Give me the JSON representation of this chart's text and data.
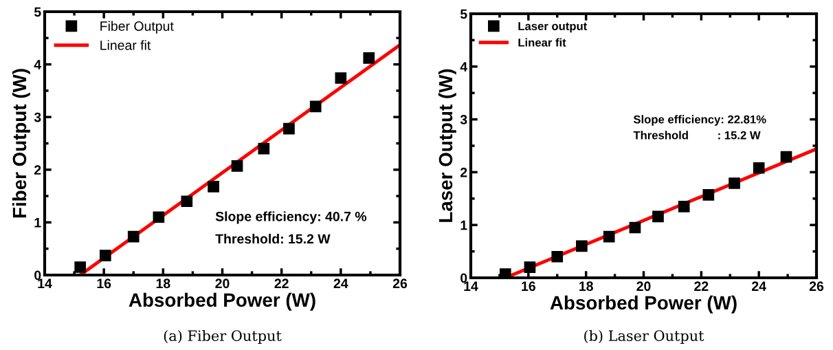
{
  "chart_data": [
    {
      "type": "scatter",
      "xlabel": "Absorbed Power (W)",
      "ylabel": "Fiber Output (W)",
      "xlim": [
        14,
        26
      ],
      "ylim": [
        0,
        5
      ],
      "xticks": [
        14,
        16,
        18,
        20,
        22,
        24,
        26
      ],
      "yticks": [
        0,
        1,
        2,
        3,
        4,
        5
      ],
      "legend": "top left",
      "grid": false,
      "series": [
        {
          "name": "Fiber Output",
          "marker": "square",
          "color": "#000000",
          "x": [
            15.2,
            16.05,
            17.0,
            17.85,
            18.8,
            19.7,
            20.5,
            21.4,
            22.25,
            23.15,
            24.0,
            24.95
          ],
          "values": [
            0.15,
            0.37,
            0.73,
            1.1,
            1.4,
            1.68,
            2.07,
            2.4,
            2.78,
            3.2,
            3.74,
            4.12
          ]
        },
        {
          "name": "Linear fit",
          "type": "line",
          "marker": "none",
          "color": "#ff0000",
          "x": [
            15.2,
            26
          ],
          "values": [
            0,
            4.37
          ]
        }
      ],
      "annotations": [
        "Slope efficiency: 40.7 %",
        "Threshold: 15.2 W",
        "(a) Fiber Output"
      ]
    },
    {
      "type": "scatter",
      "xlabel": "Absorbed Power (W)",
      "ylabel": "Laser Output (W)",
      "xlim": [
        14,
        26
      ],
      "ylim": [
        0,
        5
      ],
      "xticks": [
        14,
        16,
        18,
        20,
        22,
        24,
        26
      ],
      "yticks": [
        0,
        1,
        2,
        3,
        4,
        5
      ],
      "legend": "top left",
      "grid": false,
      "series": [
        {
          "name": "Laser output",
          "marker": "square",
          "color": "#000000",
          "x": [
            15.2,
            16.05,
            17.0,
            17.85,
            18.8,
            19.7,
            20.5,
            21.4,
            22.25,
            23.15,
            24.0,
            24.95
          ],
          "values": [
            0.07,
            0.2,
            0.4,
            0.6,
            0.78,
            0.95,
            1.16,
            1.35,
            1.57,
            1.79,
            2.08,
            2.29
          ]
        },
        {
          "name": "Linear fit",
          "type": "line",
          "marker": "none",
          "color": "#ff0000",
          "x": [
            15.2,
            26
          ],
          "values": [
            0,
            2.44
          ]
        }
      ],
      "annotations": [
        "Slope efficiency: 22.81%",
        "Threshold         : 15.2 W",
        "(b) Laser Output"
      ]
    }
  ]
}
